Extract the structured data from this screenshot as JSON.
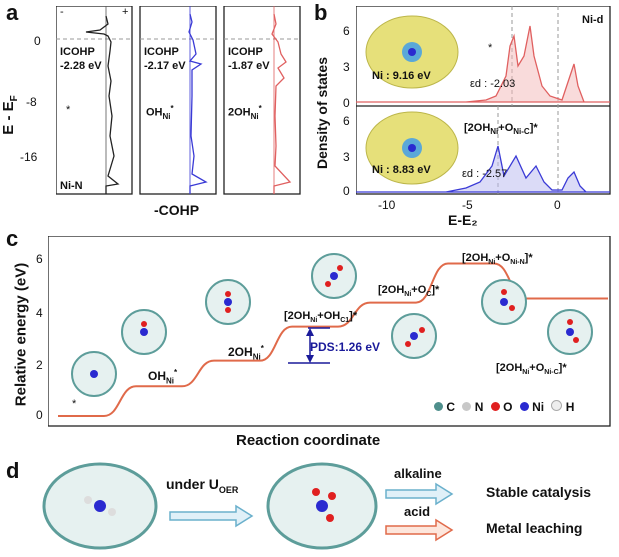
{
  "panel_a": {
    "label": "a",
    "ylabel": "E - E₂",
    "xlabel": "-COHP",
    "yticks": [
      "0",
      "-8",
      "-16"
    ],
    "minus": "-",
    "plus": "+",
    "sub_panels": [
      {
        "icohp_label": "ICOHP",
        "icohp_value": "-2.28 eV",
        "annot": "Ni-N",
        "star": "*",
        "color": "#222222"
      },
      {
        "icohp_label": "ICOHP",
        "icohp_value": "-2.17 eV",
        "species": "OH",
        "sub": "Ni",
        "sup": "*",
        "color": "#3a3ad6"
      },
      {
        "icohp_label": "ICOHP",
        "icohp_value": "-1.87 eV",
        "species": "2OH",
        "sub": "Ni",
        "sup": "*",
        "color": "#e06060"
      }
    ]
  },
  "panel_b": {
    "label": "b",
    "ylabel": "Density of states",
    "xlabel": "E-E₂",
    "xticks": [
      "-10",
      "-5",
      "0"
    ],
    "yticks_top": [
      "0",
      "3",
      "6"
    ],
    "yticks_bottom": [
      "0",
      "3",
      "6"
    ],
    "corner_label": "Ni-d",
    "top": {
      "charge": "Ni : 9.16 eV",
      "center_label": "εd : -2.03",
      "star": "*",
      "color": "#e06060"
    },
    "bottom": {
      "charge": "Ni : 8.83 eV",
      "center_label": "εd : -2.57",
      "species": "[2OH",
      "species_sub1": "Ni",
      "species_mid": "+O",
      "species_sub2": "Ni-C",
      "species_end": "]*",
      "color": "#3a3ad6"
    }
  },
  "panel_c": {
    "label": "c",
    "ylabel": "Relative energy (eV)",
    "xlabel": "Reaction coordinate",
    "yticks": [
      "0",
      "2",
      "4",
      "6"
    ],
    "pds": "PDS:1.26 eV",
    "states": [
      {
        "text": "*",
        "energy": 0.0
      },
      {
        "text": "OH",
        "sub": "Ni",
        "sup": "*",
        "energy": 1.1
      },
      {
        "text": "2OH",
        "sub": "Ni",
        "sup": "*",
        "energy": 2.05
      },
      {
        "text": "[2OH",
        "sub": "Ni",
        "mid": "+OH",
        "sub2": "C1",
        "end": "]*",
        "energy": 3.31
      },
      {
        "text": "[2OH",
        "sub": "Ni",
        "mid": "+O",
        "sub2": "C",
        "end": "]*",
        "energy": 4.2
      },
      {
        "text": "[2OH",
        "sub": "Ni",
        "mid": "+O",
        "sub2": "Ni-N",
        "end": "]*",
        "energy": 5.65
      },
      {
        "text": "[2OH",
        "sub": "Ni",
        "mid": "+O",
        "sub2": "Ni-C",
        "end": "]*",
        "energy": 4.35
      }
    ],
    "legend": [
      {
        "label": "C",
        "color": "#4f8f8c"
      },
      {
        "label": "N",
        "color": "#c8c8c8"
      },
      {
        "label": "O",
        "color": "#e02020"
      },
      {
        "label": "Ni",
        "color": "#2a2ad0"
      },
      {
        "label": "H",
        "color": "#e8e8e8"
      }
    ]
  },
  "panel_d": {
    "label": "d",
    "condition": "under U",
    "condition_sub": "OER",
    "alkaline": "alkaline",
    "acid": "acid",
    "result1": "Stable catalysis",
    "result2": "Metal leaching"
  }
}
